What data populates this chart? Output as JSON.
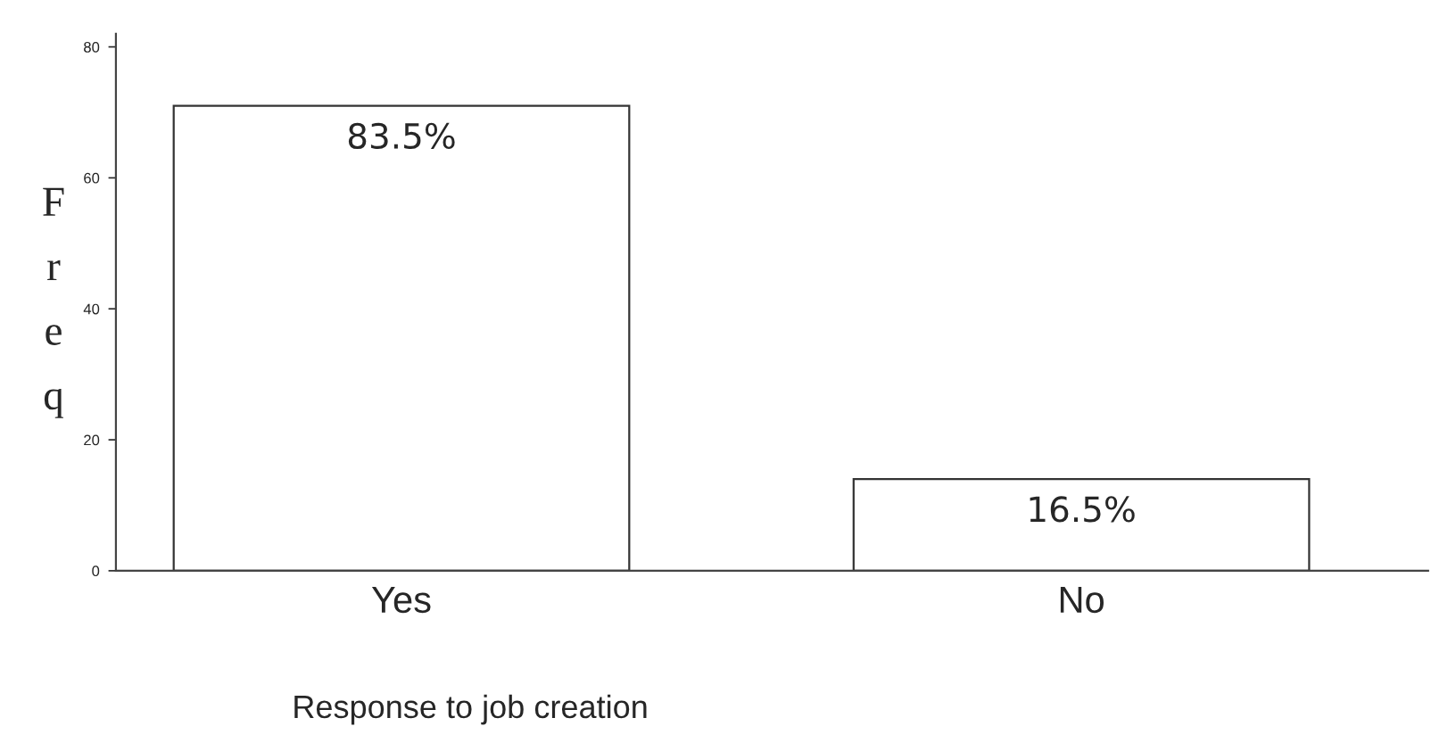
{
  "chart_data": {
    "type": "bar",
    "xlabel": "Response to job creation",
    "ylabel": "Freq",
    "categories": [
      "Yes",
      "No"
    ],
    "values": [
      71,
      14
    ],
    "annotations": [
      {
        "text": "83.5%",
        "x": "Yes",
        "y": 71
      },
      {
        "text": "16.5%",
        "x": "No",
        "y": 14
      }
    ],
    "color": "#ffffff",
    "ylim": [
      0,
      82
    ],
    "yticks": [
      0,
      20,
      40,
      60,
      80
    ],
    "grid": false,
    "legend": false
  }
}
